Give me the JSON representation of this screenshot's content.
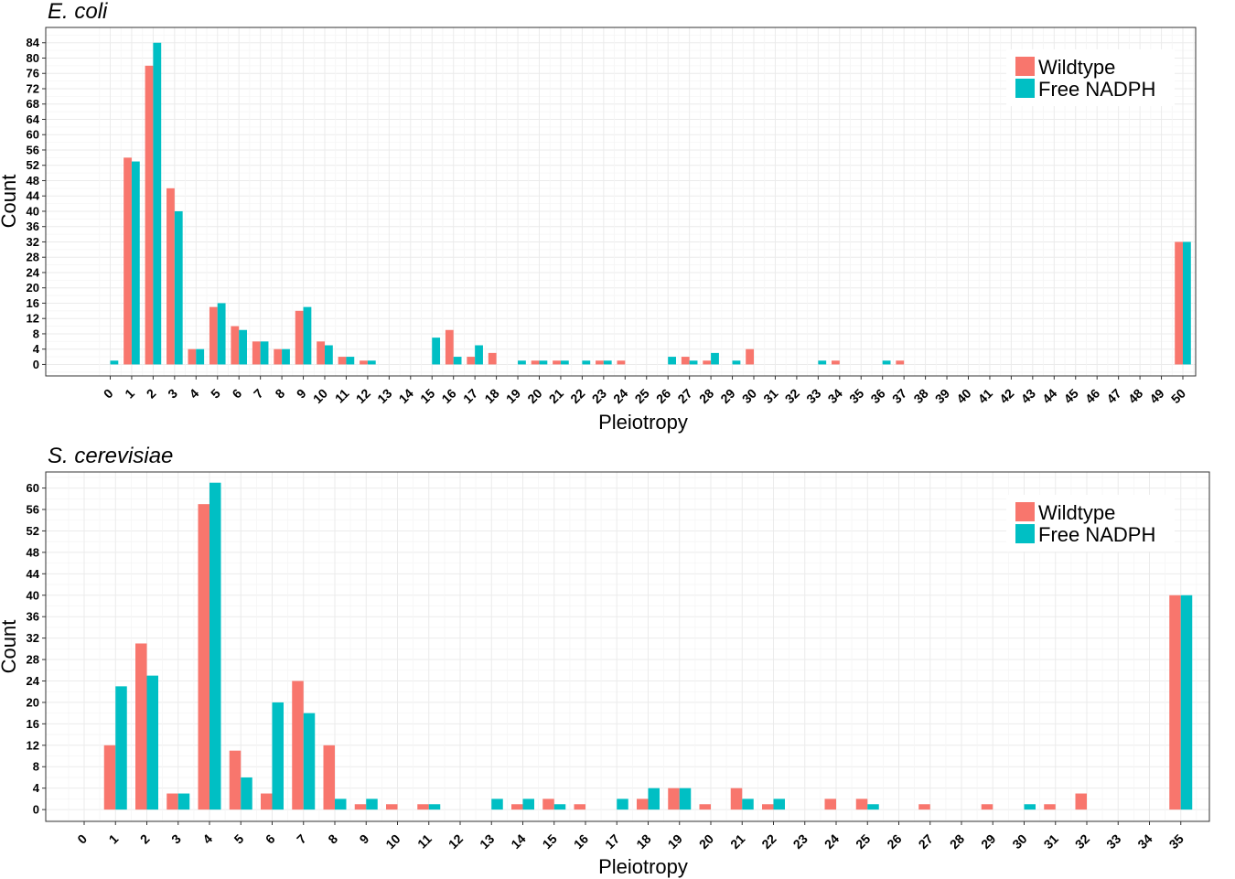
{
  "colors": {
    "wildtype": "#F8766D",
    "free_nadph": "#00BFC4"
  },
  "chart_data": [
    {
      "type": "bar",
      "title": "E. coli",
      "xlabel": "Pleiotropy",
      "ylabel": "Count",
      "categories": [
        "0",
        "1",
        "2",
        "3",
        "4",
        "5",
        "6",
        "7",
        "8",
        "9",
        "10",
        "11",
        "12",
        "13",
        "14",
        "15",
        "16",
        "17",
        "18",
        "19",
        "20",
        "21",
        "22",
        "23",
        "24",
        "25",
        "26",
        "27",
        "28",
        "29",
        "30",
        "31",
        "32",
        "33",
        "34",
        "35",
        "36",
        "37",
        "38",
        "39",
        "40",
        "41",
        "42",
        "43",
        "44",
        "45",
        "46",
        "47",
        "48",
        "49",
        "50"
      ],
      "ylim": [
        -3,
        88
      ],
      "yticks": [
        0,
        4,
        8,
        12,
        16,
        20,
        24,
        28,
        32,
        36,
        40,
        44,
        48,
        52,
        56,
        60,
        64,
        68,
        72,
        76,
        80,
        84
      ],
      "legend_position": "top-right",
      "grid": true,
      "series": [
        {
          "name": "Wildtype",
          "values": [
            0,
            54,
            78,
            46,
            4,
            15,
            10,
            6,
            4,
            14,
            6,
            2,
            1,
            0,
            0,
            0,
            9,
            2,
            3,
            0,
            1,
            1,
            0,
            1,
            1,
            0,
            0,
            2,
            1,
            0,
            4,
            0,
            0,
            0,
            1,
            0,
            0,
            1,
            0,
            0,
            0,
            0,
            0,
            0,
            0,
            0,
            0,
            0,
            0,
            0,
            32
          ]
        },
        {
          "name": "Free NADPH",
          "values": [
            1,
            53,
            84,
            40,
            4,
            16,
            9,
            6,
            4,
            15,
            5,
            2,
            1,
            0,
            0,
            7,
            2,
            5,
            0,
            1,
            1,
            1,
            1,
            1,
            0,
            0,
            2,
            1,
            3,
            1,
            0,
            0,
            0,
            1,
            0,
            0,
            1,
            0,
            0,
            0,
            0,
            0,
            0,
            0,
            0,
            0,
            0,
            0,
            0,
            0,
            32
          ]
        }
      ]
    },
    {
      "type": "bar",
      "title": "S. cerevisiae",
      "xlabel": "Pleiotropy",
      "ylabel": "Count",
      "categories": [
        "0",
        "1",
        "2",
        "3",
        "4",
        "5",
        "6",
        "7",
        "8",
        "9",
        "10",
        "11",
        "12",
        "13",
        "14",
        "15",
        "16",
        "17",
        "18",
        "19",
        "20",
        "21",
        "22",
        "23",
        "24",
        "25",
        "26",
        "27",
        "28",
        "29",
        "30",
        "31",
        "32",
        "33",
        "34",
        "35"
      ],
      "ylim": [
        -2.2,
        63
      ],
      "yticks": [
        0,
        4,
        8,
        12,
        16,
        20,
        24,
        28,
        32,
        36,
        40,
        44,
        48,
        52,
        56,
        60
      ],
      "legend_position": "top-right",
      "grid": true,
      "series": [
        {
          "name": "Wildtype",
          "values": [
            0,
            12,
            31,
            3,
            57,
            11,
            3,
            24,
            12,
            1,
            1,
            1,
            0,
            0,
            1,
            2,
            1,
            0,
            2,
            4,
            1,
            4,
            1,
            0,
            2,
            2,
            0,
            1,
            0,
            1,
            0,
            1,
            3,
            0,
            0,
            40
          ]
        },
        {
          "name": "Free NADPH",
          "values": [
            0,
            23,
            25,
            3,
            61,
            6,
            20,
            18,
            2,
            2,
            0,
            1,
            0,
            2,
            2,
            1,
            0,
            2,
            4,
            4,
            0,
            2,
            2,
            0,
            0,
            1,
            0,
            0,
            0,
            0,
            1,
            0,
            0,
            0,
            0,
            40
          ]
        }
      ]
    }
  ]
}
